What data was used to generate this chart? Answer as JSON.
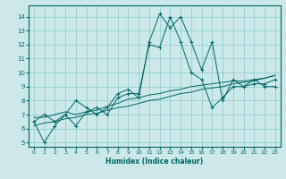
{
  "title": "",
  "xlabel": "Humidex (Indice chaleur)",
  "bg_color": "#cce8e8",
  "grid_color": "#88cccc",
  "line_color": "#006666",
  "xlim": [
    -0.5,
    23.5
  ],
  "ylim": [
    4.7,
    14.8
  ],
  "xticks": [
    0,
    1,
    2,
    3,
    4,
    5,
    6,
    7,
    8,
    9,
    10,
    11,
    12,
    13,
    14,
    15,
    16,
    17,
    18,
    19,
    20,
    21,
    22,
    23
  ],
  "yticks": [
    5,
    6,
    7,
    8,
    9,
    10,
    11,
    12,
    13,
    14
  ],
  "series1_x": [
    0,
    1,
    2,
    3,
    4,
    5,
    6,
    7,
    8,
    9,
    10,
    11,
    12,
    13,
    14,
    15,
    16,
    17,
    18,
    19,
    20,
    21,
    22,
    23
  ],
  "series1_y": [
    6.5,
    7.0,
    6.5,
    7.0,
    8.0,
    7.5,
    7.0,
    7.5,
    8.5,
    8.8,
    8.2,
    12.2,
    14.2,
    13.2,
    14.0,
    12.2,
    10.2,
    12.2,
    8.0,
    9.5,
    9.0,
    9.5,
    9.0,
    9.0
  ],
  "series2_x": [
    0,
    1,
    2,
    3,
    4,
    5,
    6,
    7,
    8,
    9,
    10,
    11,
    12,
    13,
    14,
    15,
    16,
    17,
    18,
    19,
    20,
    21,
    22,
    23
  ],
  "series2_y": [
    6.5,
    5.0,
    6.2,
    7.0,
    6.2,
    7.2,
    7.5,
    7.0,
    8.2,
    8.5,
    8.5,
    12.0,
    11.8,
    14.0,
    12.2,
    10.0,
    9.5,
    7.5,
    8.2,
    9.0,
    9.0,
    9.2,
    9.2,
    9.5
  ],
  "series3_x": [
    0,
    1,
    2,
    3,
    4,
    5,
    6,
    7,
    8,
    9,
    10,
    11,
    12,
    13,
    14,
    15,
    16,
    17,
    18,
    19,
    20,
    21,
    22,
    23
  ],
  "series3_y": [
    6.8,
    6.8,
    7.0,
    7.2,
    7.0,
    7.2,
    7.3,
    7.6,
    7.8,
    8.1,
    8.2,
    8.4,
    8.5,
    8.7,
    8.8,
    9.0,
    9.1,
    9.2,
    9.3,
    9.4,
    9.4,
    9.5,
    9.6,
    9.8
  ],
  "series4_x": [
    0,
    1,
    2,
    3,
    4,
    5,
    6,
    7,
    8,
    9,
    10,
    11,
    12,
    13,
    14,
    15,
    16,
    17,
    18,
    19,
    20,
    21,
    22,
    23
  ],
  "series4_y": [
    6.2,
    6.4,
    6.5,
    6.7,
    6.8,
    7.0,
    7.1,
    7.3,
    7.5,
    7.6,
    7.8,
    8.0,
    8.1,
    8.3,
    8.5,
    8.6,
    8.8,
    8.9,
    9.0,
    9.2,
    9.3,
    9.4,
    9.6,
    9.8
  ]
}
